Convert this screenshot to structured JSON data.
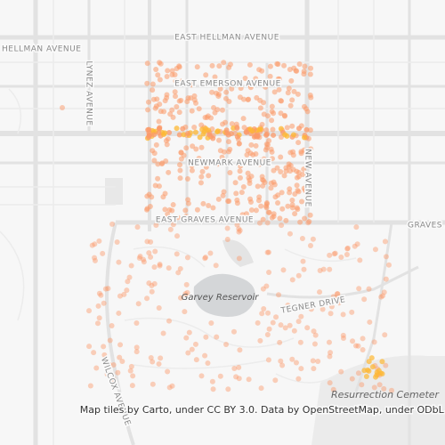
{
  "map": {
    "labels": [
      "EAST HELLMAN AVENUE",
      "HELLMAN AVENUE",
      "LYNEZ AVENUE",
      "EAST EMERSON AVENUE",
      "NEWMARK AVENUE",
      "NEW AVENUE",
      "EAST GRAVES AVENUE",
      "GRAVES A",
      "Garvey Reservoir",
      "TEGNER DRIVE",
      "WILCOX AVENUE",
      "Resurrection Cemeter"
    ],
    "attribution": "Map tiles by Carto, under CC BY 3.0. Data by OpenStreetMap, under ODbL."
  }
}
